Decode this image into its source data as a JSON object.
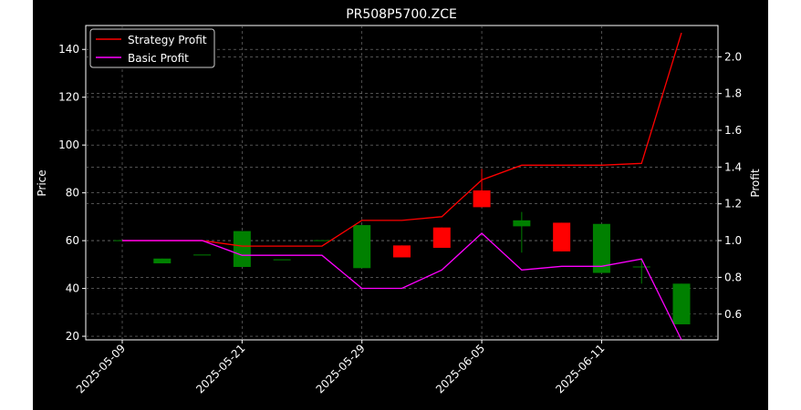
{
  "chart_data": {
    "type": "candlestick",
    "title": "PR508P5700.ZCE",
    "xlabel": "",
    "ylabel": "Price",
    "y2label": "Profit",
    "ylim": [
      18.5,
      150
    ],
    "y2lim": [
      0.46,
      2.17
    ],
    "y_ticks": [
      20,
      40,
      60,
      80,
      100,
      120,
      140
    ],
    "y2_ticks": [
      0.6,
      0.8,
      1.0,
      1.2,
      1.4,
      1.6,
      1.8,
      2.0
    ],
    "x_ticks": [
      "2025-05-09",
      "2025-05-21",
      "2025-05-29",
      "2025-06-05",
      "2025-06-11"
    ],
    "grid": true,
    "legend_position": "top-left",
    "colors": {
      "background": "#000000",
      "up": "#008000",
      "down": "#ff0000",
      "strategy": "#ff0000",
      "basic": "#ff00ff",
      "grid": "#808080"
    },
    "candles": [
      {
        "date": "2025-05-09",
        "open": 60,
        "close": 60,
        "high": 60,
        "low": 60
      },
      {
        "date": "2025-05-12",
        "open": 50.5,
        "close": 52.5,
        "high": 52.5,
        "low": 50.5
      },
      {
        "date": "2025-05-14",
        "open": 54,
        "close": 54,
        "high": 54,
        "low": 54
      },
      {
        "date": "2025-05-21",
        "open": 49,
        "close": 64,
        "high": 64,
        "low": 49
      },
      {
        "date": "2025-05-22",
        "open": 52,
        "close": 52,
        "high": 52,
        "low": 52
      },
      {
        "date": "2025-05-27",
        "open": 60,
        "close": 60,
        "high": 60,
        "low": 60
      },
      {
        "date": "2025-05-29",
        "open": 48.5,
        "close": 66.5,
        "high": 66.5,
        "low": 48.5
      },
      {
        "date": "2025-05-30",
        "open": 58,
        "close": 53,
        "high": 58,
        "low": 53
      },
      {
        "date": "2025-06-03",
        "open": 65.5,
        "close": 57,
        "high": 65.5,
        "low": 57
      },
      {
        "date": "2025-06-05",
        "open": 81,
        "close": 74,
        "high": 90,
        "low": 74
      },
      {
        "date": "2025-06-06",
        "open": 66,
        "close": 68.5,
        "high": 72,
        "low": 55
      },
      {
        "date": "2025-06-09",
        "open": 67.5,
        "close": 55.5,
        "high": 67.5,
        "low": 55.5
      },
      {
        "date": "2025-06-11",
        "open": 46.5,
        "close": 67,
        "high": 67,
        "low": 46.5
      },
      {
        "date": "2025-06-12",
        "open": 49,
        "close": 49,
        "high": 52,
        "low": 42
      },
      {
        "date": "2025-06-13",
        "open": 25,
        "close": 42,
        "high": 42,
        "low": 25
      }
    ],
    "series": [
      {
        "name": "Strategy Profit",
        "values": [
          1.0,
          1.0,
          1.0,
          0.97,
          0.97,
          0.97,
          1.11,
          1.11,
          1.13,
          1.33,
          1.41,
          1.41,
          1.41,
          1.42,
          2.13
        ]
      },
      {
        "name": "Basic Profit",
        "values": [
          1.0,
          1.0,
          1.0,
          0.92,
          0.92,
          0.92,
          0.74,
          0.74,
          0.84,
          1.04,
          0.84,
          0.86,
          0.86,
          0.9,
          0.46
        ]
      }
    ]
  }
}
